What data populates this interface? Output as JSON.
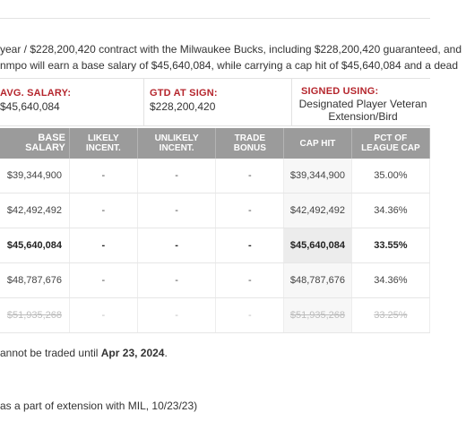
{
  "summary": {
    "line1": "year / $228,200,420 contract with the Milwaukee Bucks, including $228,200,420 guaranteed, and",
    "line2": "nmpo will earn a base salary of $45,640,084, while carrying a cap hit of $45,640,084 and a dead"
  },
  "stats": [
    {
      "label": "AVG. SALARY:",
      "value": "$45,640,084"
    },
    {
      "label": "GTD AT SIGN:",
      "value": "$228,200,420"
    },
    {
      "label": "SIGNED USING:",
      "value": "Designated Player Veteran Extension/Bird"
    }
  ],
  "table": {
    "headers": [
      "BASE SALARY",
      "LIKELY INCENT.",
      "UNLIKELY INCENT.",
      "TRADE BONUS",
      "CAP HIT",
      "PCT OF LEAGUE CAP"
    ],
    "rows": [
      [
        "$39,344,900",
        "-",
        "-",
        "-",
        "$39,344,900",
        "35.00%"
      ],
      [
        "$42,492,492",
        "-",
        "-",
        "-",
        "$42,492,492",
        "34.36%"
      ],
      [
        "$45,640,084",
        "-",
        "-",
        "-",
        "$45,640,084",
        "33.55%"
      ],
      [
        "$48,787,676",
        "-",
        "-",
        "-",
        "$48,787,676",
        "34.36%"
      ],
      [
        "$51,935,268",
        "-",
        "-",
        "-",
        "$51,935,268",
        "33.25%"
      ]
    ]
  },
  "trade_note": {
    "prefix": "annot be traded until ",
    "date": "Apr 23, 2024",
    "suffix": "."
  },
  "signed_note": "as a part of extension with MIL, 10/23/23)"
}
